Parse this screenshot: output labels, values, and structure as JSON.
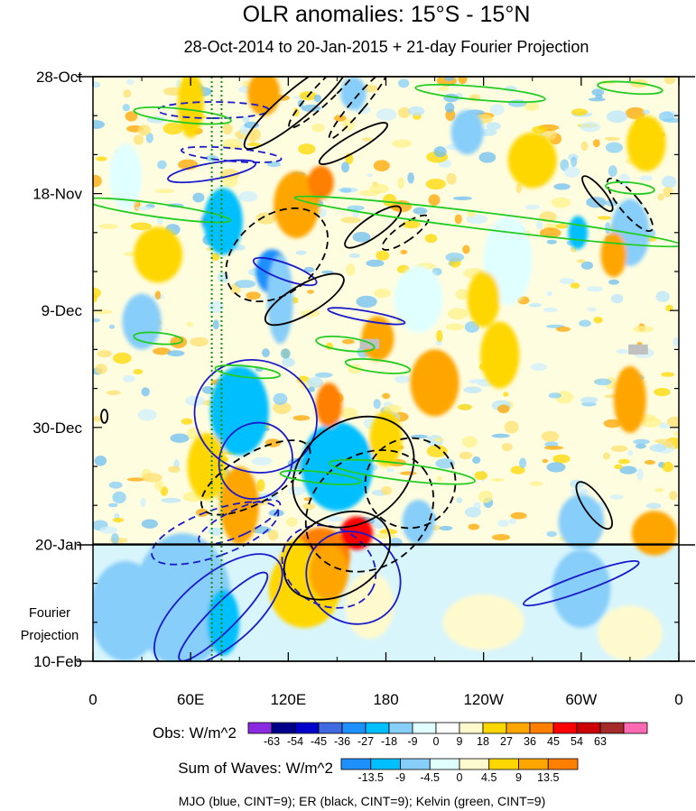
{
  "chart_data": {
    "type": "heatmap",
    "title": "OLR anomalies: 15°S - 15°N",
    "subtitle": "28-Oct-2014 to 20-Jan-2015 + 21-day Fourier Projection",
    "x_ticks": [
      "0",
      "60E",
      "120E",
      "180",
      "120W",
      "60W",
      "0"
    ],
    "x_tick_values": [
      0,
      60,
      120,
      180,
      240,
      300,
      360
    ],
    "xlim": [
      0,
      360
    ],
    "y_ticks": [
      "28-Oct",
      "18-Nov",
      "9-Dec",
      "30-Dec",
      "20-Jan",
      "10-Feb"
    ],
    "y_tick_days": [
      0,
      21,
      42,
      63,
      84,
      105
    ],
    "ylim": [
      "28-Oct",
      "10-Feb"
    ],
    "projection_start": "20-Jan",
    "projection_label": [
      "Fourier",
      "Projection"
    ],
    "reference_lines_lon": [
      73,
      79
    ],
    "obs_colorbar": {
      "label": "Obs: W/m^2",
      "levels": [
        "-63",
        "-54",
        "-45",
        "-36",
        "-27",
        "-18",
        "-9",
        "0",
        "9",
        "18",
        "27",
        "36",
        "45",
        "54",
        "63"
      ],
      "colors": [
        "#8a2be2",
        "#00008b",
        "#0000cd",
        "#4169e1",
        "#1e90ff",
        "#00bfff",
        "#87cefa",
        "#e0ffff",
        "#ffffff",
        "#fffacd",
        "#ffd700",
        "#ffa500",
        "#ff7f00",
        "#ff0000",
        "#cd0000",
        "#a52a2a",
        "#ff69b4"
      ]
    },
    "waves_colorbar": {
      "label": "Sum of Waves: W/m^2",
      "levels": [
        "-13.5",
        "-9",
        "-4.5",
        "0",
        "4.5",
        "9",
        "13.5"
      ],
      "colors": [
        "#1e90ff",
        "#00bfff",
        "#87cefa",
        "#e0ffff",
        "#fffacd",
        "#ffd700",
        "#ffa500",
        "#ff7f00"
      ]
    },
    "footnote": "MJO (blue, CINT=9); ER (black, CINT=9); Kelvin (green, CINT=9)",
    "wave_series": [
      {
        "key": "mjo",
        "color": "#1a1acc",
        "ellipses": [
          {
            "lon": 73,
            "day": 17,
            "rlon": 5,
            "rday": 8,
            "rot": 80,
            "dash": false
          },
          {
            "lon": 74,
            "day": 6,
            "rlon": 5,
            "rday": 10,
            "rot": 90,
            "dash": true
          },
          {
            "lon": 85,
            "day": 14,
            "rlon": 4,
            "rday": 9,
            "rot": 95,
            "dash": true
          },
          {
            "lon": 118,
            "day": 35,
            "rlon": 5,
            "rday": 6,
            "rot": 110,
            "dash": false
          },
          {
            "lon": 168,
            "day": 43,
            "rlon": 3,
            "rday": 7,
            "rot": 100,
            "dash": false
          },
          {
            "lon": 100,
            "day": 61,
            "rlon": 38,
            "rday": 10,
            "rot": 20,
            "dash": false
          },
          {
            "lon": 100,
            "day": 69,
            "rlon": 22,
            "rday": 7,
            "rot": 32,
            "dash": false
          },
          {
            "lon": 75,
            "day": 82,
            "rlon": 14,
            "rday": 12,
            "rot": 70,
            "dash": true
          },
          {
            "lon": 90,
            "day": 80,
            "rlon": 8,
            "rday": 8,
            "rot": 65,
            "dash": true
          },
          {
            "lon": 160,
            "day": 90,
            "rlon": 30,
            "rday": 8,
            "rot": 40,
            "dash": false
          },
          {
            "lon": 145,
            "day": 88,
            "rlon": 30,
            "rday": 7,
            "rot": 28,
            "dash": true
          },
          {
            "lon": 80,
            "day": 97,
            "rlon": 8,
            "rday": 11,
            "rot": 45,
            "dash": false
          },
          {
            "lon": 77,
            "day": 96,
            "rlon": 22,
            "rday": 14,
            "rot": 50,
            "dash": false
          },
          {
            "lon": 300,
            "day": 91,
            "rlon": 5,
            "rday": 11,
            "rot": 70,
            "dash": false
          }
        ]
      },
      {
        "key": "er",
        "color": "#000000",
        "ellipses": [
          {
            "lon": 125,
            "day": 5,
            "rlon": 9,
            "rday": 12,
            "rot": 50,
            "dash": false
          },
          {
            "lon": 145,
            "day": 2,
            "rlon": 6,
            "rday": 10,
            "rot": 45,
            "dash": true
          },
          {
            "lon": 163,
            "day": 5,
            "rlon": 4,
            "rday": 8,
            "rot": 40,
            "dash": true
          },
          {
            "lon": 160,
            "day": 12,
            "rlon": 5,
            "rday": 7,
            "rot": 60,
            "dash": false
          },
          {
            "lon": 113,
            "day": 32,
            "rlon": 35,
            "rday": 7,
            "rot": -38,
            "dash": true
          },
          {
            "lon": 130,
            "day": 40,
            "rlon": 9,
            "rday": 8,
            "rot": 60,
            "dash": false
          },
          {
            "lon": 172,
            "day": 27,
            "rlon": 6,
            "rday": 6,
            "rot": 55,
            "dash": false
          },
          {
            "lon": 192,
            "day": 28,
            "rlon": 5,
            "rday": 5,
            "rot": 55,
            "dash": true
          },
          {
            "lon": 100,
            "day": 72,
            "rlon": 15,
            "rday": 11,
            "rot": 60,
            "dash": true
          },
          {
            "lon": 160,
            "day": 71,
            "rlon": 40,
            "rday": 9,
            "rot": -35,
            "dash": false
          },
          {
            "lon": 170,
            "day": 78,
            "rlon": 42,
            "rday": 10,
            "rot": -38,
            "dash": true
          },
          {
            "lon": 195,
            "day": 73,
            "rlon": 28,
            "rday": 8,
            "rot": -42,
            "dash": true
          },
          {
            "lon": 150,
            "day": 86,
            "rlon": 35,
            "rday": 7,
            "rot": -30,
            "dash": false
          },
          {
            "lon": 308,
            "day": 77,
            "rlon": 6,
            "rday": 5,
            "rot": -35,
            "dash": false
          },
          {
            "lon": 310,
            "day": 21,
            "rlon": 4,
            "rday": 4,
            "rot": -40,
            "dash": false
          },
          {
            "lon": 330,
            "day": 23,
            "rlon": 6,
            "rday": 6,
            "rot": -40,
            "dash": true
          },
          {
            "lon": 7,
            "day": 61,
            "rlon": 2,
            "rday": 1.2,
            "rot": 0,
            "dash": false
          }
        ]
      },
      {
        "key": "kelvin",
        "color": "#22cc22",
        "ellipses": [
          {
            "lon": 40,
            "day": 24,
            "rlon": 45,
            "rday": 1.2,
            "rot": 8,
            "dash": false
          },
          {
            "lon": 243,
            "day": 26,
            "rlon": 120,
            "rday": 1.5,
            "rot": 7,
            "dash": false
          },
          {
            "lon": 55,
            "day": 7,
            "rlon": 30,
            "rday": 1.2,
            "rot": 6,
            "dash": false
          },
          {
            "lon": 238,
            "day": 3,
            "rlon": 40,
            "rday": 1.2,
            "rot": 5,
            "dash": false
          },
          {
            "lon": 330,
            "day": 2,
            "rlon": 20,
            "rday": 1.0,
            "rot": 5,
            "dash": false
          },
          {
            "lon": 155,
            "day": 48,
            "rlon": 18,
            "rday": 1.2,
            "rot": 7,
            "dash": false
          },
          {
            "lon": 175,
            "day": 52,
            "rlon": 20,
            "rday": 1.1,
            "rot": 7,
            "dash": false
          },
          {
            "lon": 40,
            "day": 47,
            "rlon": 15,
            "rday": 1.0,
            "rot": 5,
            "dash": false
          },
          {
            "lon": 190,
            "day": 71,
            "rlon": 45,
            "rday": 1.5,
            "rot": 7,
            "dash": false
          },
          {
            "lon": 140,
            "day": 72,
            "rlon": 25,
            "rday": 1.0,
            "rot": 6,
            "dash": false
          },
          {
            "lon": 95,
            "day": 53,
            "rlon": 20,
            "rday": 1.0,
            "rot": 6,
            "dash": false
          },
          {
            "lon": 330,
            "day": 20,
            "rlon": 15,
            "rday": 1.0,
            "rot": 5,
            "dash": false
          }
        ]
      }
    ],
    "anomaly_blobs": [
      {
        "lon": 73,
        "day": 26,
        "rlon": 6,
        "rday": 2,
        "value": -54
      },
      {
        "lon": 93,
        "day": 56,
        "rlon": 6,
        "rday": 2,
        "value": -54
      },
      {
        "lon": 155,
        "day": 72,
        "rlon": 7,
        "rday": 3,
        "value": -54
      },
      {
        "lon": 110,
        "day": 35,
        "rlon": 10,
        "rday": 4,
        "value": -36
      },
      {
        "lon": 90,
        "day": 60,
        "rlon": 18,
        "rday": 8,
        "value": -27
      },
      {
        "lon": 150,
        "day": 70,
        "rlon": 22,
        "rday": 8,
        "value": -27
      },
      {
        "lon": 80,
        "day": 26,
        "rlon": 12,
        "rday": 6,
        "value": -27
      },
      {
        "lon": 115,
        "day": 40,
        "rlon": 8,
        "rday": 8,
        "value": -18
      },
      {
        "lon": 298,
        "day": 28,
        "rlon": 6,
        "rday": 3,
        "value": -27
      },
      {
        "lon": 330,
        "day": 28,
        "rlon": 12,
        "rday": 6,
        "value": -18
      },
      {
        "lon": 300,
        "day": 80,
        "rlon": 14,
        "rday": 5,
        "value": -18
      },
      {
        "lon": 200,
        "day": 80,
        "rlon": 10,
        "rday": 4,
        "value": -18
      },
      {
        "lon": 30,
        "day": 44,
        "rlon": 12,
        "rday": 5,
        "value": -18
      },
      {
        "lon": 160,
        "day": 3,
        "rlon": 8,
        "rday": 3,
        "value": -18
      },
      {
        "lon": 230,
        "day": 10,
        "rlon": 10,
        "rday": 4,
        "value": -18
      },
      {
        "lon": 255,
        "day": 33,
        "rlon": 15,
        "rday": 8,
        "value": -9
      },
      {
        "lon": 200,
        "day": 40,
        "rlon": 15,
        "rday": 6,
        "value": -9
      },
      {
        "lon": 20,
        "day": 18,
        "rlon": 10,
        "rday": 6,
        "value": -9
      },
      {
        "lon": 90,
        "day": 77,
        "rlon": 12,
        "rday": 7,
        "value": 27
      },
      {
        "lon": 140,
        "day": 86,
        "rlon": 18,
        "rday": 5,
        "value": 36
      },
      {
        "lon": 162,
        "day": 82,
        "rlon": 10,
        "rday": 3,
        "value": 45
      },
      {
        "lon": 145,
        "day": 59,
        "rlon": 8,
        "rday": 4,
        "value": 36
      },
      {
        "lon": 125,
        "day": 23,
        "rlon": 14,
        "rday": 6,
        "value": 27
      },
      {
        "lon": 140,
        "day": 19,
        "rlon": 8,
        "rday": 3,
        "value": 36
      },
      {
        "lon": 175,
        "day": 47,
        "rlon": 10,
        "rday": 4,
        "value": 27
      },
      {
        "lon": 210,
        "day": 55,
        "rlon": 15,
        "rday": 6,
        "value": 27
      },
      {
        "lon": 250,
        "day": 50,
        "rlon": 12,
        "rday": 6,
        "value": 18
      },
      {
        "lon": 320,
        "day": 32,
        "rlon": 8,
        "rday": 4,
        "value": 27
      },
      {
        "lon": 330,
        "day": 58,
        "rlon": 10,
        "rday": 6,
        "value": 27
      },
      {
        "lon": 345,
        "day": 82,
        "rlon": 14,
        "rday": 4,
        "value": 27
      },
      {
        "lon": 60,
        "day": 5,
        "rlon": 8,
        "rday": 6,
        "value": 18
      },
      {
        "lon": 105,
        "day": 3,
        "rlon": 10,
        "rday": 4,
        "value": 27
      },
      {
        "lon": 125,
        "day": 90,
        "rlon": 12,
        "rday": 7,
        "value": 18
      },
      {
        "lon": 40,
        "day": 32,
        "rlon": 15,
        "rday": 5,
        "value": 18
      },
      {
        "lon": 270,
        "day": 15,
        "rlon": 15,
        "rday": 5,
        "value": 18
      },
      {
        "lon": 240,
        "day": 40,
        "rlon": 10,
        "rday": 5,
        "value": 18
      },
      {
        "lon": 70,
        "day": 70,
        "rlon": 12,
        "rday": 6,
        "value": 18
      },
      {
        "lon": 340,
        "day": 12,
        "rlon": 12,
        "rday": 5,
        "value": 18
      },
      {
        "lon": 180,
        "day": 65,
        "rlon": 10,
        "rday": 5,
        "value": 18
      }
    ],
    "projection_fill": [
      {
        "lon": 55,
        "day": 94,
        "rlon": 30,
        "rday": 12,
        "value": -4.5
      },
      {
        "lon": 80,
        "day": 98,
        "rlon": 10,
        "rday": 6,
        "value": -9
      },
      {
        "lon": 20,
        "day": 96,
        "rlon": 22,
        "rday": 9,
        "value": -4.5
      },
      {
        "lon": 130,
        "day": 92,
        "rlon": 22,
        "rday": 7,
        "value": 9
      },
      {
        "lon": 145,
        "day": 89,
        "rlon": 12,
        "rday": 5,
        "value": 13.5
      },
      {
        "lon": 170,
        "day": 95,
        "rlon": 15,
        "rday": 6,
        "value": 4.5
      },
      {
        "lon": 300,
        "day": 92,
        "rlon": 18,
        "rday": 7,
        "value": -4.5
      },
      {
        "lon": 330,
        "day": 100,
        "rlon": 20,
        "rday": 5,
        "value": 4.5
      },
      {
        "lon": 240,
        "day": 98,
        "rlon": 25,
        "rday": 5,
        "value": 4.5
      }
    ],
    "missing_boxes": [
      {
        "lon": 335,
        "day": 49,
        "wlon": 12,
        "hday": 1.8
      },
      {
        "lon": 170,
        "day": 48,
        "wlon": 12,
        "hday": 1.8
      }
    ]
  }
}
